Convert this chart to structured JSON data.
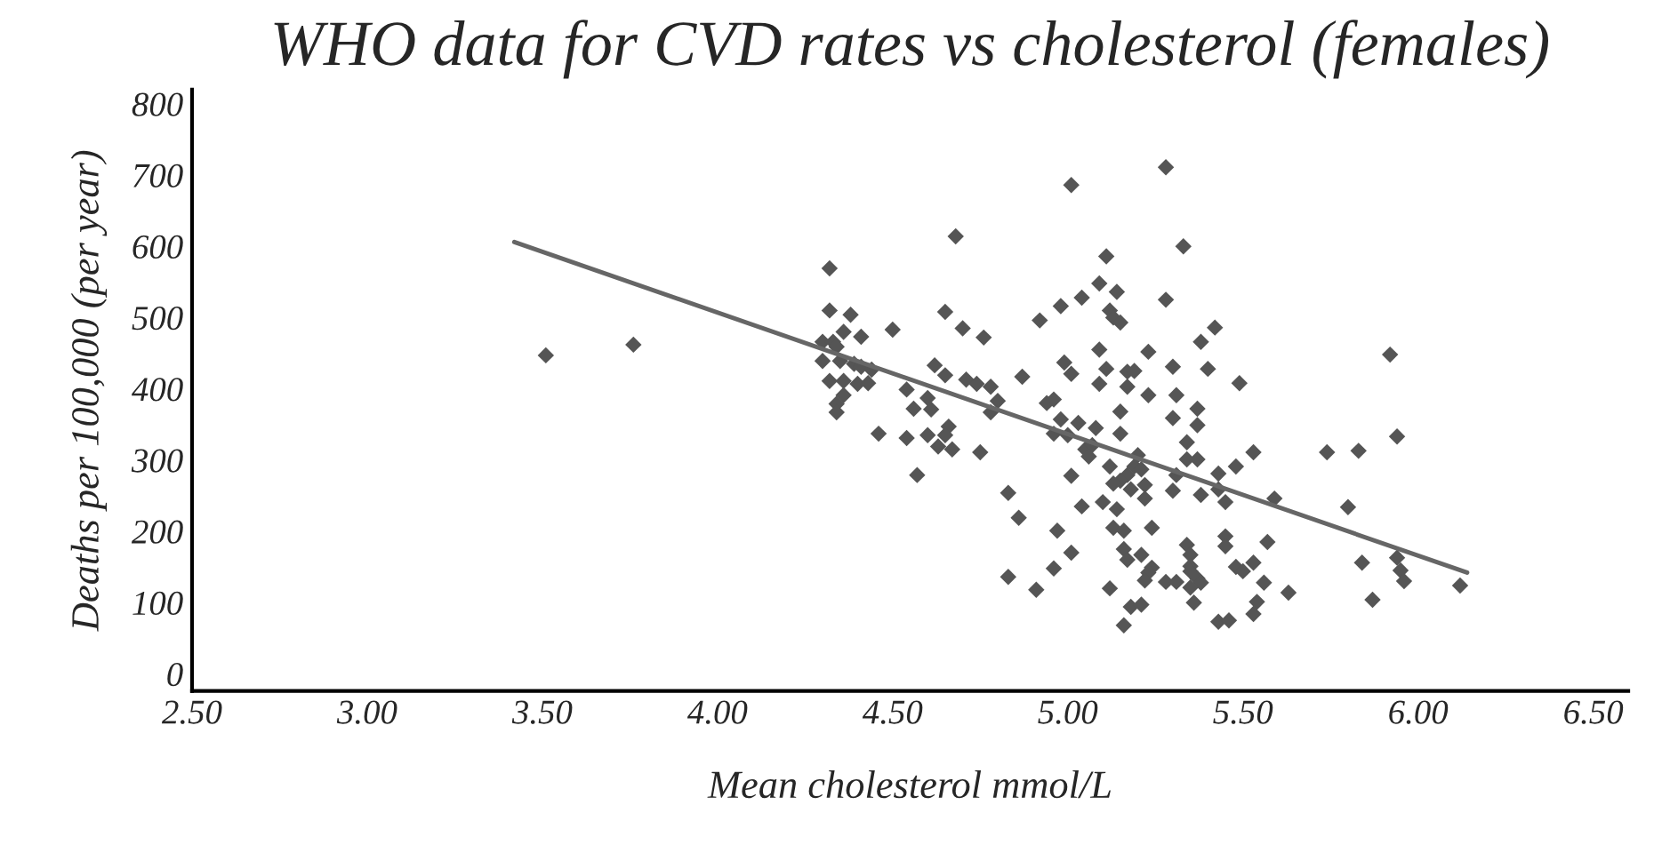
{
  "chart_data": {
    "type": "scatter",
    "title": "WHO data for CVD rates vs cholesterol (females)",
    "xlabel": "Mean cholesterol mmol/L",
    "ylabel": "Deaths per 100,000 (per year)",
    "xlim": [
      2.5,
      6.6
    ],
    "xticks": [
      {
        "value": 2.5,
        "label": "2.50"
      },
      {
        "value": 3.0,
        "label": "3.00"
      },
      {
        "value": 3.5,
        "label": "3.50"
      },
      {
        "value": 4.0,
        "label": "4.00"
      },
      {
        "value": 4.5,
        "label": "4.50"
      },
      {
        "value": 5.0,
        "label": "5.00"
      },
      {
        "value": 5.5,
        "label": "5.50"
      },
      {
        "value": 6.0,
        "label": "6.00"
      },
      {
        "value": 6.5,
        "label": "6.50"
      }
    ],
    "ylim": [
      -24,
      820
    ],
    "yticks": [
      0,
      100,
      200,
      300,
      400,
      500,
      600,
      700,
      800
    ],
    "grid": false,
    "legend": false,
    "marker": "diamond",
    "series": [
      {
        "color": "#555555",
        "x": [
          3.51,
          3.76,
          4.32,
          4.68,
          4.32,
          4.38,
          4.36,
          4.41,
          4.3,
          4.33,
          4.34,
          4.3,
          4.35,
          4.39,
          4.41,
          4.44,
          4.32,
          4.36,
          4.4,
          4.43,
          4.36,
          4.34,
          4.34,
          4.5,
          4.65,
          4.7,
          4.76,
          4.62,
          4.65,
          4.54,
          4.6,
          4.56,
          4.61,
          4.71,
          4.74,
          4.78,
          4.8,
          4.78,
          4.87,
          4.46,
          4.54,
          4.6,
          4.66,
          4.65,
          4.63,
          4.67,
          4.75,
          4.57,
          4.83,
          4.86,
          4.83,
          5.01,
          5.28,
          5.33,
          5.11,
          5.09,
          5.14,
          5.04,
          4.98,
          4.92,
          5.12,
          5.13,
          5.15,
          5.28,
          5.42,
          5.38,
          5.92,
          5.09,
          5.23,
          4.99,
          5.01,
          5.11,
          5.17,
          5.19,
          5.3,
          5.4,
          5.49,
          5.09,
          5.17,
          5.23,
          5.31,
          4.94,
          4.96,
          5.15,
          5.37,
          4.98,
          5.03,
          5.08,
          4.96,
          5.0,
          5.15,
          5.3,
          5.37,
          5.34,
          5.05,
          5.07,
          5.06,
          5.2,
          5.19,
          5.21,
          5.17,
          5.15,
          5.13,
          5.34,
          5.37,
          5.12,
          5.01,
          5.31,
          5.43,
          5.48,
          5.53,
          5.74,
          5.83,
          5.94,
          5.18,
          5.22,
          5.22,
          5.3,
          5.38,
          5.43,
          5.45,
          5.59,
          5.1,
          5.14,
          5.04,
          5.8,
          4.97,
          5.13,
          5.16,
          5.24,
          5.01,
          5.16,
          5.17,
          5.21,
          5.34,
          5.35,
          5.45,
          5.45,
          5.57,
          5.24,
          5.23,
          5.22,
          5.28,
          5.31,
          5.35,
          5.35,
          5.37,
          5.38,
          5.35,
          5.48,
          5.5,
          5.53,
          5.56,
          5.54,
          5.53,
          5.63,
          4.96,
          4.91,
          5.12,
          5.18,
          5.21,
          5.16,
          5.36,
          5.43,
          5.46,
          5.84,
          5.94,
          5.95,
          5.96,
          5.87,
          6.12
        ],
        "values": [
          447,
          462,
          569,
          614,
          510,
          504,
          480,
          473,
          466,
          466,
          459,
          439,
          439,
          435,
          431,
          427,
          411,
          411,
          407,
          408,
          391,
          379,
          367,
          483,
          508,
          485,
          472,
          433,
          419,
          399,
          387,
          372,
          371,
          413,
          407,
          403,
          383,
          367,
          417,
          337,
          331,
          335,
          347,
          335,
          319,
          315,
          311,
          279,
          254,
          219,
          136,
          686,
          711,
          600,
          586,
          548,
          536,
          528,
          516,
          496,
          510,
          500,
          493,
          525,
          486,
          466,
          448,
          455,
          452,
          437,
          421,
          428,
          424,
          425,
          431,
          428,
          408,
          407,
          403,
          391,
          391,
          380,
          385,
          368,
          372,
          357,
          352,
          345,
          337,
          335,
          337,
          359,
          349,
          325,
          315,
          321,
          305,
          307,
          291,
          287,
          279,
          271,
          267,
          301,
          301,
          291,
          278,
          279,
          281,
          291,
          311,
          311,
          313,
          333,
          259,
          265,
          246,
          257,
          251,
          259,
          241,
          246,
          241,
          231,
          235,
          234,
          201,
          205,
          201,
          205,
          170,
          175,
          160,
          167,
          181,
          167,
          193,
          179,
          185,
          149,
          142,
          131,
          129,
          129,
          151,
          144,
          134,
          128,
          121,
          150,
          144,
          156,
          128,
          101,
          84,
          114,
          148,
          118,
          120,
          94,
          97,
          68,
          100,
          73,
          75,
          156,
          163,
          145,
          130,
          104,
          124
        ]
      },
      {
        "type": "line",
        "color": "#666666",
        "marker": "none",
        "x": [
          3.42,
          6.14
        ],
        "values": [
          606,
          142
        ]
      }
    ]
  }
}
